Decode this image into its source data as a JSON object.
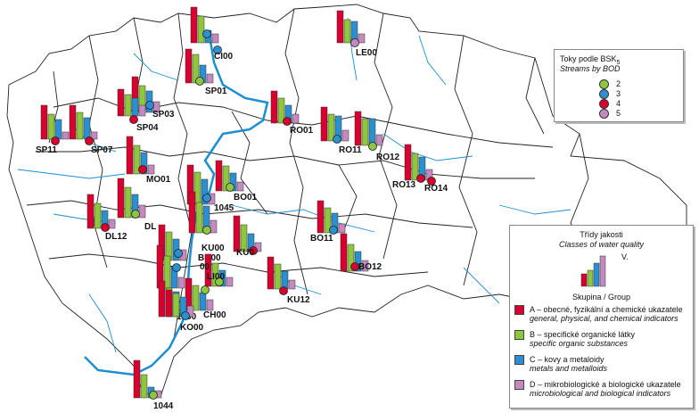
{
  "colors": {
    "A": "#d8002e",
    "B": "#8dc63f",
    "C": "#2b8fd0",
    "D": "#c48ac0",
    "2": "#8dc63f",
    "3": "#2b8fd0",
    "4": "#d8002e",
    "5": "#c48ac0"
  },
  "stations": [
    {
      "id": "CI00_top",
      "label": "CI00",
      "dot": "3"
    },
    {
      "id": "CI00",
      "label": "CI00",
      "dot": "3"
    },
    {
      "id": "LE00",
      "label": "LE00",
      "dot": "5"
    },
    {
      "id": "SP01",
      "label": "SP01",
      "dot": "2"
    },
    {
      "id": "SP03",
      "label": "SP03",
      "dot": "3"
    },
    {
      "id": "SP04",
      "label": "SP04",
      "dot": "4"
    },
    {
      "id": "SP11",
      "label": "SP11",
      "dot": "4"
    },
    {
      "id": "SP07",
      "label": "SP07",
      "dot": "4"
    },
    {
      "id": "RO01",
      "label": "RO01",
      "dot": "4"
    },
    {
      "id": "RO11",
      "label": "RO11",
      "dot": "3"
    },
    {
      "id": "RO12",
      "label": "RO12",
      "dot": "2"
    },
    {
      "id": "MO01",
      "label": "MO01",
      "dot": "4"
    },
    {
      "id": "BO01",
      "label": "BO01",
      "dot": "2"
    },
    {
      "id": "RO13",
      "label": "RO13",
      "dot": "4"
    },
    {
      "id": "RO14",
      "label": "RO14",
      "dot": "4"
    },
    {
      "id": "1045",
      "label": "1045",
      "dot": "3"
    },
    {
      "id": "DL12",
      "label": "DL12",
      "dot": "4"
    },
    {
      "id": "DL",
      "label": "DL",
      "dot": "2"
    },
    {
      "id": "BO11",
      "label": "BO11",
      "dot": "3"
    },
    {
      "id": "BO12",
      "label": "BO12",
      "dot": "4"
    },
    {
      "id": "KU00",
      "label": "KU00",
      "dot": "2"
    },
    {
      "id": "BR00",
      "label": "BR00",
      "dot": "3"
    },
    {
      "id": "KU01",
      "label": "KU0",
      "dot": "4"
    },
    {
      "id": "LI00",
      "label": "LI00",
      "dot": "2"
    },
    {
      "id": "X00",
      "label": "00",
      "dot": "3"
    },
    {
      "id": "KU12",
      "label": "KU12",
      "dot": "4"
    },
    {
      "id": "CH00",
      "label": "CH00",
      "dot": "2"
    },
    {
      "id": "1090",
      "label": "1090",
      "dot": "2"
    },
    {
      "id": "KO00",
      "label": "KO00",
      "dot": "3"
    },
    {
      "id": "1044",
      "label": "1044",
      "dot": "2"
    }
  ],
  "legend_bod": {
    "title": "Toky podle BSK",
    "title_sub": "5",
    "subtitle": "Streams by BOD",
    "entries": [
      {
        "label": "2",
        "key": "2"
      },
      {
        "label": "3",
        "key": "3"
      },
      {
        "label": "4",
        "key": "4"
      },
      {
        "label": "5",
        "key": "5"
      }
    ]
  },
  "legend_quality": {
    "title": "Třídy jakosti",
    "subtitle": "Classes of water quality",
    "top_class": "V.",
    "group_title": "Skupina / Group",
    "groups": [
      {
        "key": "A",
        "cz": "A – obecné, fyzikální a chemické ukazatele",
        "en": "general, physical, and chemical indicators"
      },
      {
        "key": "B",
        "cz": "B – specifické organické látky",
        "en": "specific organic substances"
      },
      {
        "key": "C",
        "cz": "C – kovy a metaloidy",
        "en": "metals and metalloids"
      },
      {
        "key": "D",
        "cz": "D – mikrobiologické a biologické ukazatele",
        "en": "microbiological and biological indicators"
      }
    ]
  }
}
